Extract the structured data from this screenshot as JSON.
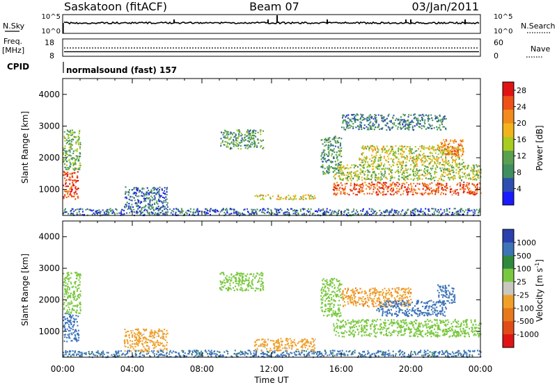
{
  "header": {
    "station": "Saskatoon (fitACF)",
    "beam": "Beam 07",
    "date": "03/Jan/2011"
  },
  "noise_panel": {
    "left_label": "N.Sky",
    "right_label": "N.Search",
    "left_ticks": [
      "10^5",
      "10^0"
    ],
    "right_ticks": [
      "10^5",
      "10^0"
    ]
  },
  "freq_panel": {
    "left_label_1": "Freq.",
    "left_label_2": "[MHz]",
    "right_label": "Nave",
    "left_ticks": [
      "18",
      "8"
    ],
    "right_ticks": [
      "60",
      "0"
    ],
    "left_range": [
      8,
      18
    ],
    "right_range": [
      0,
      60
    ],
    "freq_value": 10,
    "nave_value": 30
  },
  "cpid": {
    "label": "CPID",
    "text": "normalsound (fast) 157"
  },
  "colors": {
    "power": [
      "#1a1aff",
      "#2f4fb0",
      "#3f8f60",
      "#5aa050",
      "#a8cc20",
      "#f2b41a",
      "#f28a1c",
      "#ee5018",
      "#e11414"
    ],
    "velocity": [
      "#2c3fae",
      "#3d74b8",
      "#2f8a3e",
      "#7ac840",
      "#c8c8c0",
      "#f0a028",
      "#e8781c",
      "#e04c18",
      "#e01414"
    ]
  },
  "chart_data": [
    {
      "type": "heatmap",
      "quantity": "power",
      "xlabel": "Time UT",
      "ylabel": "Slant Range [km]",
      "x_ticks": [
        "00:00",
        "04:00",
        "08:00",
        "12:00",
        "16:00",
        "20:00",
        "00:00"
      ],
      "xlim_hours": [
        0,
        24
      ],
      "ylim_km": [
        180,
        4500
      ],
      "y_ticks": [
        1000,
        2000,
        3000,
        4000
      ],
      "colorbar": {
        "label": "Power [dB]",
        "ticks": [
          4,
          8,
          12,
          16,
          20,
          24,
          28
        ],
        "range": [
          0,
          30
        ]
      },
      "echo_regions": [
        {
          "t": [
            0.0,
            0.9
          ],
          "r": [
            700,
            1600
          ],
          "level": 26
        },
        {
          "t": [
            0.0,
            1.0
          ],
          "r": [
            1600,
            2900
          ],
          "level": 12
        },
        {
          "t": [
            0.0,
            24.0
          ],
          "r": [
            200,
            420
          ],
          "level": 6
        },
        {
          "t": [
            3.5,
            6.0
          ],
          "r": [
            380,
            1100
          ],
          "level": 6
        },
        {
          "t": [
            9.0,
            11.5
          ],
          "r": [
            2300,
            2900
          ],
          "level": 10
        },
        {
          "t": [
            11.0,
            14.5
          ],
          "r": [
            700,
            850
          ],
          "level": 17
        },
        {
          "t": [
            14.8,
            16.0
          ],
          "r": [
            1500,
            2700
          ],
          "level": 10
        },
        {
          "t": [
            15.5,
            24.0
          ],
          "r": [
            850,
            1250
          ],
          "level": 25
        },
        {
          "t": [
            15.5,
            24.0
          ],
          "r": [
            1300,
            1800
          ],
          "level": 14
        },
        {
          "t": [
            17.0,
            23.0
          ],
          "r": [
            1800,
            2400
          ],
          "level": 16
        },
        {
          "t": [
            21.5,
            23.0
          ],
          "r": [
            2100,
            2600
          ],
          "level": 22
        },
        {
          "t": [
            16.0,
            22.0
          ],
          "r": [
            2900,
            3400
          ],
          "level": 8
        }
      ]
    },
    {
      "type": "heatmap",
      "quantity": "velocity",
      "xlabel": "Time UT",
      "ylabel": "Slant Range [km]",
      "x_ticks": [
        "00:00",
        "04:00",
        "08:00",
        "12:00",
        "16:00",
        "20:00",
        "00:00"
      ],
      "xlim_hours": [
        0,
        24
      ],
      "ylim_km": [
        180,
        4500
      ],
      "y_ticks": [
        1000,
        2000,
        3000,
        4000
      ],
      "colorbar": {
        "label": "Velocity [m s^-1]",
        "ticks": [
          1000,
          500,
          100,
          25,
          -25,
          -100,
          -500,
          -1000
        ]
      },
      "echo_regions": [
        {
          "t": [
            0.0,
            0.9
          ],
          "r": [
            700,
            1600
          ],
          "level": 200
        },
        {
          "t": [
            0.0,
            1.0
          ],
          "r": [
            1600,
            2900
          ],
          "level": 0
        },
        {
          "t": [
            0.0,
            24.0
          ],
          "r": [
            200,
            420
          ],
          "level": 150
        },
        {
          "t": [
            3.5,
            6.0
          ],
          "r": [
            380,
            1100
          ],
          "level": -150
        },
        {
          "t": [
            9.0,
            11.5
          ],
          "r": [
            2300,
            2900
          ],
          "level": 0
        },
        {
          "t": [
            11.0,
            14.5
          ],
          "r": [
            400,
            800
          ],
          "level": -150
        },
        {
          "t": [
            14.8,
            16.0
          ],
          "r": [
            1500,
            2700
          ],
          "level": 0
        },
        {
          "t": [
            15.5,
            24.0
          ],
          "r": [
            850,
            1400
          ],
          "level": 0
        },
        {
          "t": [
            16.0,
            20.0
          ],
          "r": [
            1800,
            2400
          ],
          "level": -400
        },
        {
          "t": [
            18.0,
            22.0
          ],
          "r": [
            1500,
            2000
          ],
          "level": 300
        },
        {
          "t": [
            21.5,
            22.5
          ],
          "r": [
            1900,
            2500
          ],
          "level": 300
        }
      ]
    }
  ]
}
